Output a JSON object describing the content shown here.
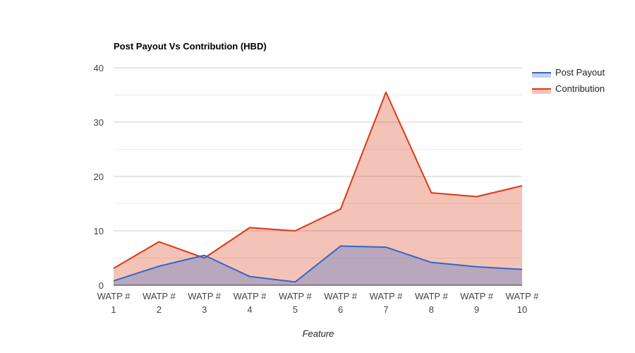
{
  "chart_data": {
    "type": "area",
    "title": "Post Payout Vs Contribution (HBD)",
    "xlabel": "Feature",
    "ylabel": "",
    "categories": [
      [
        "WATP #",
        "1"
      ],
      [
        "WATP #",
        "2"
      ],
      [
        "WATP #",
        "3"
      ],
      [
        "WATP #",
        "4"
      ],
      [
        "WATP #",
        "5"
      ],
      [
        "WATP #",
        "6"
      ],
      [
        "WATP #",
        "7"
      ],
      [
        "WATP #",
        "8"
      ],
      [
        "WATP #",
        "9"
      ],
      [
        "WATP #",
        "10"
      ]
    ],
    "ylim": [
      0,
      40
    ],
    "y_ticks": [
      0,
      10,
      20,
      30,
      40
    ],
    "grid": true,
    "legend_position": "right",
    "series": [
      {
        "name": "Post Payout",
        "color": "#3366cc",
        "values": [
          0.8,
          3.5,
          5.5,
          1.6,
          0.6,
          7.2,
          7.0,
          4.2,
          3.4,
          2.9
        ]
      },
      {
        "name": "Contribution",
        "color": "#dc3912",
        "values": [
          3.1,
          8.0,
          5.0,
          10.6,
          10.0,
          14.0,
          35.5,
          17.0,
          16.3,
          18.3
        ]
      }
    ]
  }
}
